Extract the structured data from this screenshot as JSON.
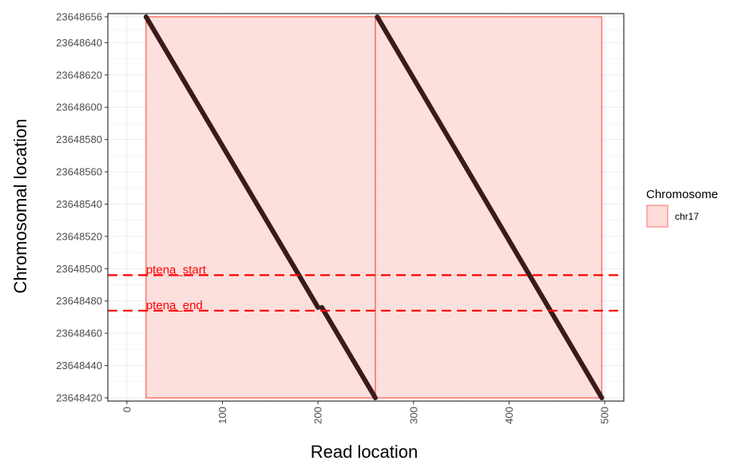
{
  "chart_data": {
    "type": "line",
    "xlabel": "Read location",
    "ylabel": "Chromosomal location",
    "xlim": [
      -20,
      520
    ],
    "ylim": [
      23648418,
      23648658
    ],
    "x_ticks": [
      0,
      100,
      200,
      300,
      400,
      500
    ],
    "y_ticks": [
      23648420,
      23648440,
      23648460,
      23648480,
      23648500,
      23648520,
      23648540,
      23648560,
      23648580,
      23648600,
      23648620,
      23648640,
      23648656
    ],
    "grid": true,
    "legend": {
      "title": "Chromosome",
      "position": "right",
      "entries": [
        {
          "label": "chr17",
          "color": "#f8766d"
        }
      ]
    },
    "regions": [
      {
        "chromosome": "chr17",
        "x_start": 20,
        "x_end": 260,
        "y_start": 23648420,
        "y_end": 23648656
      },
      {
        "chromosome": "chr17",
        "x_start": 260,
        "x_end": 497,
        "y_start": 23648420,
        "y_end": 23648656
      }
    ],
    "segments": [
      {
        "x": [
          20,
          200
        ],
        "y": [
          23648656,
          23648476
        ]
      },
      {
        "x": [
          204,
          260
        ],
        "y": [
          23648476,
          23648420
        ]
      },
      {
        "x": [
          262,
          497
        ],
        "y": [
          23648656,
          23648420
        ]
      }
    ],
    "hlines": [
      {
        "label": "ptena_start",
        "y": 23648496,
        "color": "#ff0000"
      },
      {
        "label": "ptena_end",
        "y": 23648474,
        "color": "#ff0000"
      }
    ],
    "colors": {
      "region_fill": "#fcdbd8",
      "region_stroke": "#f8766d",
      "line": "#3d1a1a",
      "hline": "#ff0000"
    }
  }
}
